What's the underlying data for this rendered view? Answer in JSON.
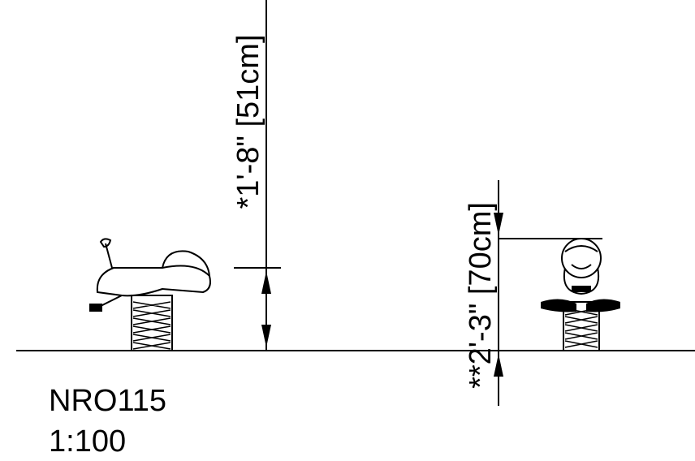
{
  "dimensions": [
    {
      "label": "*1'-8\" [51cm]"
    },
    {
      "label": "**2'-3\" [70cm]"
    }
  ],
  "model": "NRO115",
  "scale": "1:100"
}
